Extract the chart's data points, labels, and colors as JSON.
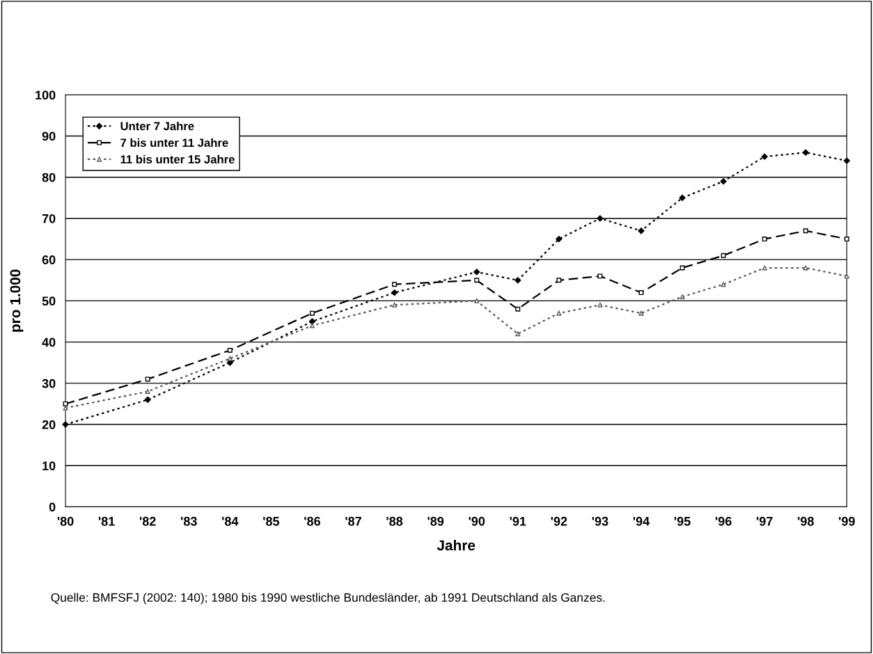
{
  "chart_data": {
    "type": "line",
    "xlabel": "Jahre",
    "ylabel": "pro 1.000",
    "x": [
      1980,
      1982,
      1984,
      1986,
      1988,
      1990,
      1991,
      1992,
      1993,
      1994,
      1995,
      1996,
      1997,
      1998,
      1999
    ],
    "series": [
      {
        "name": "Unter 7 Jahre",
        "color": "#000000",
        "marker": "diamond",
        "line_style": "dotted",
        "values": [
          20,
          26,
          35,
          45,
          52,
          57,
          55,
          65,
          70,
          67,
          75,
          79,
          85,
          86,
          84
        ]
      },
      {
        "name": "7 bis unter 11 Jahre",
        "color": "#000000",
        "marker": "square",
        "line_style": "dashed",
        "values": [
          25,
          31,
          38,
          47,
          54,
          55,
          48,
          55,
          56,
          52,
          58,
          61,
          65,
          67,
          65
        ]
      },
      {
        "name": "11 bis unter 15 Jahre",
        "color": "#555555",
        "marker": "triangle",
        "line_style": "dotted",
        "values": [
          24,
          28,
          36,
          44,
          49,
          50,
          42,
          47,
          49,
          47,
          51,
          54,
          58,
          58,
          56
        ]
      }
    ],
    "xlim": [
      1980,
      1999
    ],
    "xticks": [
      {
        "value": 1980,
        "label": "'80"
      },
      {
        "value": 1981,
        "label": "'81"
      },
      {
        "value": 1982,
        "label": "'82"
      },
      {
        "value": 1983,
        "label": "'83"
      },
      {
        "value": 1984,
        "label": "'84"
      },
      {
        "value": 1985,
        "label": "'85"
      },
      {
        "value": 1986,
        "label": "'86"
      },
      {
        "value": 1987,
        "label": "'87"
      },
      {
        "value": 1988,
        "label": "'88"
      },
      {
        "value": 1989,
        "label": "'89"
      },
      {
        "value": 1990,
        "label": "'90"
      },
      {
        "value": 1991,
        "label": "'91"
      },
      {
        "value": 1992,
        "label": "'92"
      },
      {
        "value": 1993,
        "label": "'93"
      },
      {
        "value": 1994,
        "label": "'94"
      },
      {
        "value": 1995,
        "label": "'95"
      },
      {
        "value": 1996,
        "label": "'96"
      },
      {
        "value": 1997,
        "label": "'97"
      },
      {
        "value": 1998,
        "label": "'98"
      },
      {
        "value": 1999,
        "label": "'99"
      }
    ],
    "ylim": [
      0,
      100
    ],
    "yticks": [
      0,
      10,
      20,
      30,
      40,
      50,
      60,
      70,
      80,
      90,
      100
    ],
    "grid": "y",
    "legend": "top left",
    "annotations": [
      "Quelle: BMFSFJ (2002: 140); 1980 bis 1990 westliche Bundesländer, ab 1991 Deutschland als Ganzes."
    ]
  }
}
